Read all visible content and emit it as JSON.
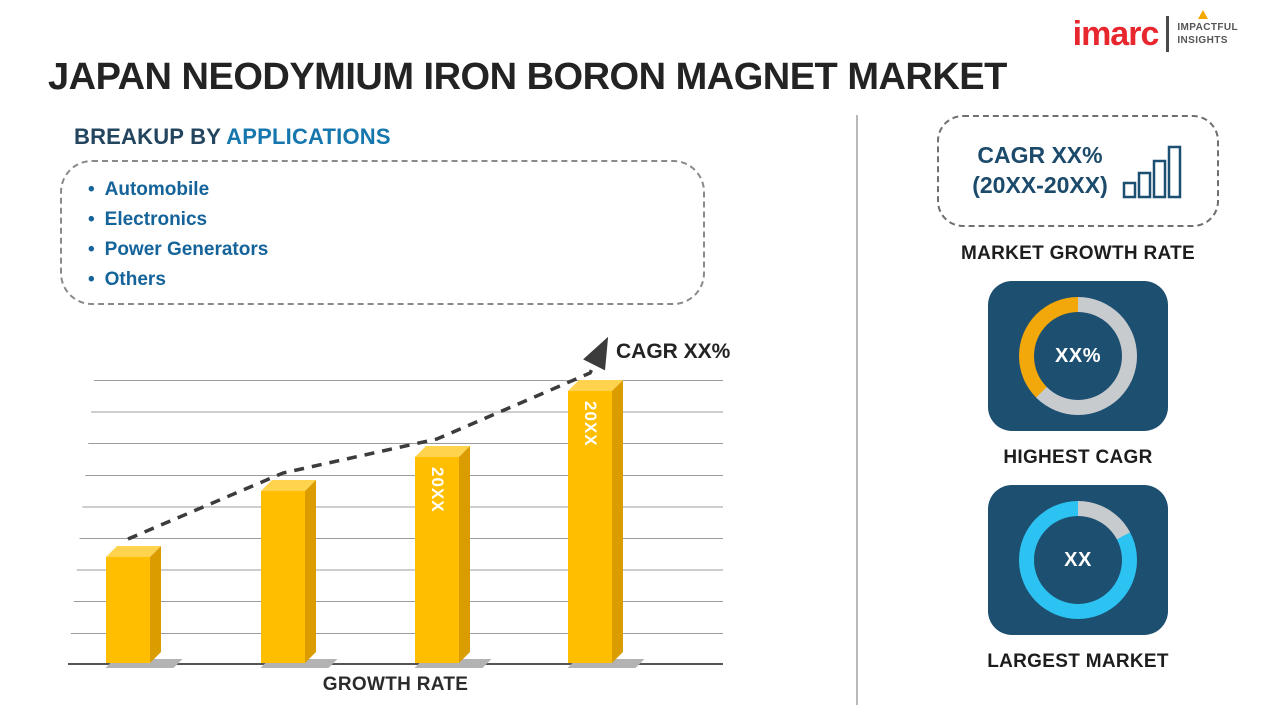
{
  "logo": {
    "brand": "imarc",
    "tagline_line1": "IMPACTFUL",
    "tagline_line2": "INSIGHTS"
  },
  "title": "JAPAN NEODYMIUM IRON BORON MAGNET MARKET",
  "breakup": {
    "heading_prefix": "BREAKUP BY ",
    "heading_highlight": "APPLICATIONS",
    "items": [
      "Automobile",
      "Electronics",
      "Power Generators",
      "Others"
    ]
  },
  "chart_data": {
    "type": "bar",
    "categories": [
      "",
      "",
      "20XX",
      "20XX"
    ],
    "values": [
      38,
      62,
      74,
      98
    ],
    "bar_labels": [
      "",
      "",
      "20XX",
      "20XX"
    ],
    "ylim": [
      0,
      100
    ],
    "xlabel": "GROWTH RATE",
    "ylabel": "",
    "trend_label": "CAGR XX%",
    "bar_color": "#FFBE00",
    "trend_style": "dashed-arrow-ascending",
    "grid": true
  },
  "sidebar": {
    "growth_card": {
      "line1": "CAGR XX%",
      "line2": "(20XX-20XX)",
      "caption": "MARKET GROWTH RATE"
    },
    "highest_cagr": {
      "value": "XX%",
      "caption": "HIGHEST CAGR",
      "ring_color": "#F2A70B",
      "track_color": "#C8CBCE",
      "segment_start_deg": 225,
      "segment_end_deg": 360
    },
    "largest_market": {
      "value": "XX",
      "caption": "LARGEST MARKET",
      "ring_color": "#2CC2F1",
      "track_color": "#C8CBCE",
      "segment_start_deg": 62,
      "segment_end_deg": 360
    }
  },
  "colors": {
    "accent_navy": "#1D4F71",
    "bar_gold": "#FFBE00",
    "logo_red": "#E8262D",
    "heading_blue": "#1577AD",
    "item_blue": "#14639A",
    "divider_gray": "#B9B9B9"
  }
}
